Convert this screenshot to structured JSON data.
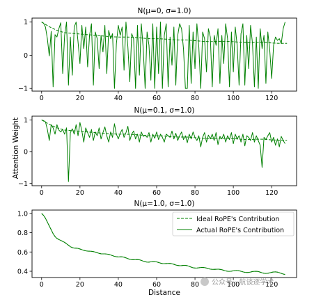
{
  "figure": {
    "ylabel": "Attention Weight",
    "xlabel": "Distance",
    "watermark": "公众号 · 航谈逐学术"
  },
  "colors": {
    "line": "#008000",
    "frame": "#000000",
    "background": "#ffffff"
  },
  "chart_data": [
    {
      "type": "line",
      "title": "N(μ=0, σ=1.0)",
      "xlim": [
        -5,
        133
      ],
      "ylim": [
        -1.08,
        1.12
      ],
      "xticks": [
        "0",
        "20",
        "40",
        "60",
        "80",
        "100",
        "120"
      ],
      "yticks": [
        "−1",
        "0",
        "1"
      ],
      "series": [
        {
          "style": "dashed",
          "x_start": 0,
          "x_step": 4,
          "values": [
            1.0,
            0.86,
            0.75,
            0.68,
            0.66,
            0.64,
            0.62,
            0.6,
            0.58,
            0.56,
            0.55,
            0.55,
            0.54,
            0.52,
            0.5,
            0.5,
            0.49,
            0.47,
            0.46,
            0.46,
            0.44,
            0.42,
            0.41,
            0.42,
            0.42,
            0.41,
            0.39,
            0.38,
            0.39,
            0.39,
            0.37,
            0.36,
            0.36
          ]
        },
        {
          "style": "solid",
          "x_start": 0,
          "x_step": 1,
          "values": [
            1.0,
            0.97,
            0.85,
            0.5,
            -0.02,
            0.72,
            -0.95,
            0.62,
            0.55,
            0.8,
            0.98,
            -0.55,
            0.6,
            1.0,
            -0.9,
            0.55,
            -0.6,
            0.85,
            1.0,
            0.4,
            -0.25,
            0.9,
            0.2,
            0.85,
            -0.35,
            0.6,
            0.95,
            -0.9,
            0.7,
            0.5,
            -0.4,
            0.6,
            0.1,
            0.9,
            -0.55,
            0.75,
            0.5,
            0.65,
            -1.0,
            0.35,
            0.9,
            0.6,
            0.85,
            -0.45,
            1.0,
            0.25,
            -0.8,
            0.65,
            0.5,
            -1.0,
            0.9,
            -0.6,
            0.95,
            0.2,
            -1.0,
            0.7,
            0.3,
            -0.75,
            0.95,
            -1.0,
            0.85,
            -0.55,
            1.0,
            -1.0,
            0.6,
            0.95,
            -0.95,
            0.55,
            -0.3,
            0.85,
            -0.9,
            0.6,
            0.95,
            0.8,
            0.2,
            -1.0,
            -1.0,
            0.9,
            -0.85,
            0.7,
            -0.4,
            0.95,
            0.25,
            -1.0,
            0.7,
            0.5,
            -0.5,
            0.8,
            0.55,
            -0.95,
            0.6,
            0.3,
            0.8,
            -0.85,
            0.6,
            -0.25,
            0.95,
            0.5,
            -0.95,
            0.7,
            -0.5,
            0.85,
            0.3,
            -0.9,
            0.65,
            0.95,
            -0.9,
            0.6,
            -0.4,
            0.9,
            0.35,
            -0.95,
            0.55,
            -1.0,
            0.8,
            0.2,
            0.6,
            -0.85,
            0.7,
            0.15,
            -0.7,
            0.3,
            0.55,
            0.45,
            0.5,
            0.35,
            0.8,
            1.0
          ]
        }
      ]
    },
    {
      "type": "line",
      "title": "N(μ=0.1, σ=1.0)",
      "xlim": [
        -5,
        133
      ],
      "ylim": [
        -1.08,
        1.12
      ],
      "xticks": [
        "0",
        "20",
        "40",
        "60",
        "80",
        "100",
        "120"
      ],
      "yticks": [
        "−1",
        "0",
        "1"
      ],
      "series": [
        {
          "style": "dashed",
          "x_start": 0,
          "x_step": 4,
          "values": [
            1.0,
            0.86,
            0.75,
            0.68,
            0.66,
            0.64,
            0.62,
            0.6,
            0.58,
            0.56,
            0.55,
            0.55,
            0.54,
            0.52,
            0.5,
            0.5,
            0.49,
            0.47,
            0.46,
            0.46,
            0.44,
            0.42,
            0.41,
            0.42,
            0.42,
            0.41,
            0.39,
            0.38,
            0.39,
            0.39,
            0.37,
            0.36,
            0.36
          ]
        },
        {
          "style": "solid",
          "x_start": 0,
          "x_step": 1,
          "values": [
            1.0,
            0.98,
            0.94,
            0.7,
            0.35,
            0.85,
            0.75,
            0.55,
            0.85,
            0.68,
            0.62,
            0.7,
            0.55,
            0.75,
            -0.95,
            0.6,
            0.72,
            0.55,
            0.85,
            0.5,
            0.92,
            0.65,
            0.3,
            0.75,
            0.6,
            0.45,
            0.7,
            0.35,
            0.62,
            0.5,
            0.75,
            0.4,
            0.6,
            0.78,
            0.5,
            0.3,
            0.62,
            0.45,
            0.88,
            0.55,
            0.4,
            0.58,
            0.7,
            0.45,
            0.6,
            0.8,
            0.35,
            0.55,
            0.65,
            0.4,
            0.55,
            0.3,
            0.62,
            0.48,
            0.52,
            0.45,
            0.6,
            0.3,
            0.55,
            0.42,
            0.62,
            0.38,
            0.55,
            0.45,
            0.3,
            0.55,
            0.5,
            0.45,
            0.65,
            0.4,
            0.58,
            0.35,
            0.5,
            0.62,
            0.38,
            0.5,
            0.28,
            0.55,
            0.4,
            0.62,
            0.45,
            0.35,
            0.5,
            0.15,
            0.45,
            0.6,
            0.3,
            0.52,
            0.4,
            0.55,
            0.35,
            0.6,
            0.22,
            0.48,
            0.4,
            0.55,
            0.3,
            0.5,
            0.38,
            0.6,
            0.25,
            0.55,
            0.4,
            0.5,
            0.3,
            0.55,
            0.18,
            0.5,
            0.45,
            0.35,
            0.6,
            0.3,
            0.5,
            0.35,
            0.2,
            -0.5,
            0.45,
            0.38,
            0.5,
            0.6,
            0.3,
            0.45,
            0.2,
            0.4,
            0.15,
            0.48,
            0.35,
            0.25
          ]
        }
      ]
    },
    {
      "type": "line",
      "title": "N(μ=1.0, σ=1.0)",
      "xlim": [
        -5,
        133
      ],
      "ylim": [
        0.335,
        1.035
      ],
      "xticks": [
        "0",
        "20",
        "40",
        "60",
        "80",
        "100",
        "120"
      ],
      "yticks": [
        "0.4",
        "0.6",
        "0.8",
        "1.0"
      ],
      "legend": {
        "position": "upper-right",
        "entries": [
          "Ideal RoPE's Contribution",
          "Actual RoPE's Contribution"
        ]
      },
      "series": [
        {
          "name": "Ideal RoPE's Contribution",
          "style": "dashed",
          "x_start": 0,
          "x_step": 1,
          "values": [
            1.0,
            0.98,
            0.95,
            0.91,
            0.87,
            0.83,
            0.79,
            0.76,
            0.74,
            0.73,
            0.72,
            0.71,
            0.7,
            0.685,
            0.67,
            0.655,
            0.645,
            0.64,
            0.64,
            0.637,
            0.631,
            0.624,
            0.617,
            0.612,
            0.609,
            0.608,
            0.607,
            0.604,
            0.599,
            0.592,
            0.586,
            0.581,
            0.58,
            0.58,
            0.579,
            0.575,
            0.569,
            0.562,
            0.555,
            0.551,
            0.549,
            0.55,
            0.55,
            0.546,
            0.539,
            0.531,
            0.524,
            0.52,
            0.52,
            0.521,
            0.521,
            0.519,
            0.513,
            0.505,
            0.499,
            0.495,
            0.495,
            0.498,
            0.5,
            0.5,
            0.497,
            0.491,
            0.485,
            0.48,
            0.479,
            0.48,
            0.481,
            0.481,
            0.478,
            0.472,
            0.465,
            0.46,
            0.458,
            0.459,
            0.461,
            0.461,
            0.458,
            0.451,
            0.443,
            0.436,
            0.433,
            0.433,
            0.436,
            0.439,
            0.44,
            0.438,
            0.433,
            0.427,
            0.422,
            0.42,
            0.42,
            0.421,
            0.422,
            0.42,
            0.416,
            0.41,
            0.404,
            0.4,
            0.399,
            0.401,
            0.405,
            0.407,
            0.408,
            0.405,
            0.4,
            0.394,
            0.389,
            0.387,
            0.388,
            0.392,
            0.397,
            0.399,
            0.4,
            0.397,
            0.391,
            0.384,
            0.379,
            0.377,
            0.379,
            0.384,
            0.389,
            0.393,
            0.394,
            0.391,
            0.385,
            0.378,
            0.371,
            0.367
          ]
        },
        {
          "name": "Actual RoPE's Contribution",
          "style": "solid",
          "x_start": 0,
          "x_step": 1,
          "values": [
            1.0,
            0.98,
            0.95,
            0.91,
            0.87,
            0.83,
            0.79,
            0.76,
            0.74,
            0.73,
            0.72,
            0.71,
            0.7,
            0.685,
            0.67,
            0.655,
            0.645,
            0.64,
            0.64,
            0.637,
            0.631,
            0.624,
            0.617,
            0.612,
            0.609,
            0.608,
            0.607,
            0.604,
            0.599,
            0.592,
            0.586,
            0.581,
            0.58,
            0.58,
            0.579,
            0.575,
            0.569,
            0.562,
            0.555,
            0.551,
            0.549,
            0.55,
            0.55,
            0.546,
            0.539,
            0.531,
            0.524,
            0.52,
            0.52,
            0.521,
            0.521,
            0.519,
            0.513,
            0.505,
            0.499,
            0.495,
            0.495,
            0.498,
            0.5,
            0.5,
            0.497,
            0.491,
            0.485,
            0.48,
            0.479,
            0.48,
            0.481,
            0.481,
            0.478,
            0.472,
            0.465,
            0.46,
            0.458,
            0.459,
            0.461,
            0.461,
            0.458,
            0.451,
            0.443,
            0.436,
            0.433,
            0.433,
            0.436,
            0.439,
            0.44,
            0.438,
            0.433,
            0.427,
            0.422,
            0.42,
            0.42,
            0.421,
            0.422,
            0.42,
            0.416,
            0.41,
            0.404,
            0.4,
            0.399,
            0.401,
            0.405,
            0.407,
            0.408,
            0.405,
            0.4,
            0.394,
            0.389,
            0.387,
            0.388,
            0.392,
            0.397,
            0.399,
            0.4,
            0.397,
            0.391,
            0.384,
            0.379,
            0.377,
            0.379,
            0.384,
            0.389,
            0.393,
            0.394,
            0.391,
            0.385,
            0.378,
            0.371,
            0.367
          ]
        }
      ]
    }
  ]
}
